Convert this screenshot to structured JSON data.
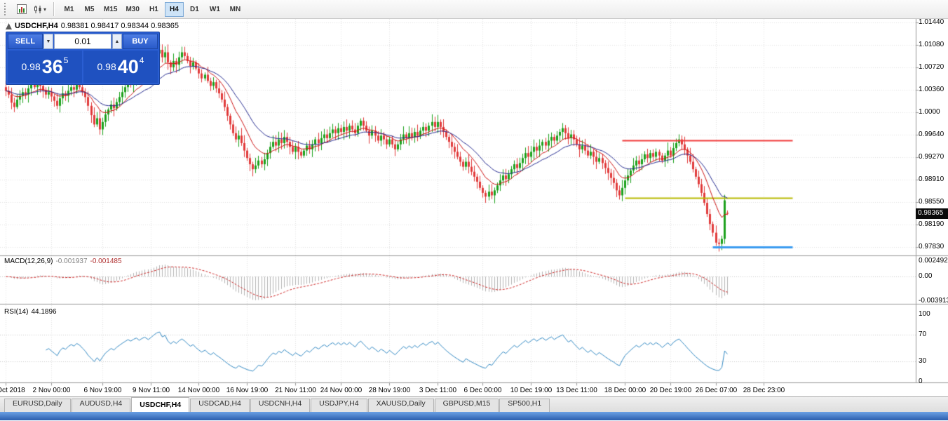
{
  "toolbar": {
    "timeframes": [
      "M1",
      "M5",
      "M15",
      "M30",
      "H1",
      "H4",
      "D1",
      "W1",
      "MN"
    ],
    "active_timeframe": "H4"
  },
  "chart": {
    "title": "USDCHF,H4",
    "ohlc_text": "0.98381 0.98417 0.98344 0.98365",
    "price_badge": "0.98365",
    "price_axis": [
      "1.01440",
      "1.01080",
      "1.00720",
      "1.00360",
      "1.0000",
      "0.99640",
      "0.99270",
      "0.98910",
      "0.98550",
      "0.98190",
      "0.97830"
    ],
    "price_axis_values": [
      1.0144,
      1.0108,
      1.0072,
      1.0036,
      1.0,
      0.9964,
      0.9927,
      0.9891,
      0.9855,
      0.9819,
      0.9783
    ]
  },
  "trade_panel": {
    "sell_label": "SELL",
    "buy_label": "BUY",
    "volume": "0.01",
    "sell_price_big": "0.98",
    "sell_price_pips": "36",
    "sell_price_sup": "5",
    "buy_price_big": "0.98",
    "buy_price_pips": "40",
    "buy_price_sup": "4"
  },
  "macd": {
    "label": "MACD(12,26,9)",
    "value1": "-0.001937",
    "value2": "-0.001485",
    "axis": [
      "0.002492",
      "0.00",
      "-0.003913"
    ],
    "axis_values": [
      0.002492,
      0,
      -0.003913
    ]
  },
  "rsi": {
    "label": "RSI(14)",
    "value": "44.1896",
    "axis": [
      "100",
      "70",
      "30",
      "0"
    ],
    "axis_values": [
      100,
      70,
      30,
      0
    ],
    "levels": [
      70,
      30
    ]
  },
  "dates": {
    "labels": [
      "30 Oct 2018",
      "2 Nov 00:00",
      "6 Nov 19:00",
      "9 Nov 11:00",
      "14 Nov 00:00",
      "16 Nov 19:00",
      "21 Nov 11:00",
      "24 Nov 00:00",
      "28 Nov 19:00",
      "3 Dec 11:00",
      "6 Dec 00:00",
      "10 Dec 19:00",
      "13 Dec 11:00",
      "18 Dec 00:00",
      "20 Dec 19:00",
      "26 Dec 07:00",
      "28 Dec 23:00"
    ],
    "candle_indices": [
      0,
      16,
      34,
      51,
      68,
      85,
      102,
      118,
      135,
      152,
      168,
      185,
      201,
      218,
      234,
      250,
      267
    ]
  },
  "tabs": {
    "items": [
      "EURUSD,Daily",
      "AUDUSD,H4",
      "USDCHF,H4",
      "USDCAD,H4",
      "USDCNH,H4",
      "USDJPY,H4",
      "XAUUSD,Daily",
      "GBPUSD,M15",
      "SP500,H1"
    ],
    "active": "USDCHF,H4"
  },
  "colors": {
    "candle_up": "#1ca11c",
    "candle_down": "#e13b3b",
    "ma_fast": "#cc1111",
    "ma_slow": "#242a8f",
    "macd_hist": "#b4b4b4",
    "macd_signal": "#cc2222",
    "rsi_line": "#2e86c1",
    "grid": "#e0e0e0",
    "level_dotted": "#c8c8c8",
    "separator": "#9a9a9a",
    "hline_red": "#f03b3b",
    "hline_yellow": "#b7ba00",
    "hline_blue": "#3a9bf0"
  },
  "chart_data": {
    "type": "candlestick",
    "symbol": "USDCHF",
    "timeframe": "H4",
    "price_min": 0.9783,
    "price_max": 1.0144,
    "indicators": [
      {
        "name": "MACD",
        "params": [
          12,
          26,
          9
        ],
        "current": [
          -0.001937,
          -0.001485
        ],
        "range": [
          -0.003913,
          0.002492
        ]
      },
      {
        "name": "RSI",
        "params": [
          14
        ],
        "current": 44.1896,
        "range": [
          0,
          100
        ]
      }
    ],
    "h_lines": [
      {
        "price": 0.9954,
        "color": "#f03b3b",
        "width": 2,
        "from_index": 217,
        "to_index": 277
      },
      {
        "price": 0.9862,
        "color": "#b7ba00",
        "width": 2,
        "from_index": 218,
        "to_index": 277
      },
      {
        "price": 0.9783,
        "color": "#3a9bf0",
        "width": 3,
        "from_index": 249,
        "to_index": 277
      }
    ],
    "last_candle": {
      "open": 0.98381,
      "high": 0.98417,
      "low": 0.98344,
      "close": 0.98365
    },
    "closes": [
      1.0034,
      1.0028,
      1.0015,
      1.0008,
      1.002,
      1.0026,
      1.0032,
      1.0028,
      1.0038,
      1.0044,
      1.004,
      1.0046,
      1.0042,
      1.0035,
      1.0028,
      1.0032,
      1.0025,
      1.0018,
      1.001,
      1.0022,
      1.003,
      1.0026,
      1.0034,
      1.004,
      1.0036,
      1.0044,
      1.004,
      1.0032,
      1.0024,
      1.001,
      0.9995,
      0.998,
      0.999,
      0.9972,
      0.9984,
      0.9996,
      1.0004,
      1.0012,
      1.0006,
      1.0016,
      1.0024,
      1.0032,
      1.004,
      1.0048,
      1.0044,
      1.0052,
      1.0058,
      1.0052,
      1.006,
      1.0066,
      1.006,
      1.007,
      1.0082,
      1.0094,
      1.01,
      1.0088,
      1.0096,
      1.008,
      1.0072,
      1.0082,
      1.0076,
      1.0088,
      1.0096,
      1.009,
      1.0082,
      1.0074,
      1.008,
      1.007,
      1.0062,
      1.0054,
      1.006,
      1.005,
      1.0042,
      1.0048,
      1.0038,
      1.003,
      1.002,
      1.0008,
      0.9994,
      0.998,
      0.9966,
      0.9956,
      0.9962,
      0.995,
      0.9938,
      0.9926,
      0.9916,
      0.9908,
      0.9914,
      0.9922,
      0.9916,
      0.9924,
      0.9934,
      0.9944,
      0.9952,
      0.9946,
      0.9956,
      0.995,
      0.996,
      0.9952,
      0.9944,
      0.9936,
      0.9944,
      0.9936,
      0.993,
      0.9938,
      0.9946,
      0.994,
      0.9948,
      0.9956,
      0.995,
      0.9958,
      0.9964,
      0.9958,
      0.9966,
      0.9972,
      0.9966,
      0.9974,
      0.9968,
      0.9976,
      0.997,
      0.9978,
      0.9972,
      0.9966,
      0.9978,
      0.9986,
      0.9978,
      0.997,
      0.9962,
      0.997,
      0.9962,
      0.9954,
      0.9962,
      0.9956,
      0.9948,
      0.9956,
      0.9948,
      0.994,
      0.9948,
      0.9956,
      0.9964,
      0.9958,
      0.9966,
      0.996,
      0.9968,
      0.9962,
      0.997,
      0.9976,
      0.997,
      0.9978,
      0.9984,
      0.9976,
      0.9984,
      0.9976,
      0.9968,
      0.996,
      0.9952,
      0.9944,
      0.9936,
      0.9928,
      0.992,
      0.9912,
      0.992,
      0.9912,
      0.9904,
      0.9896,
      0.9888,
      0.9878,
      0.987,
      0.9864,
      0.9872,
      0.9866,
      0.9874,
      0.9882,
      0.989,
      0.9898,
      0.9892,
      0.99,
      0.9908,
      0.9916,
      0.991,
      0.9918,
      0.9926,
      0.9934,
      0.9928,
      0.9936,
      0.9944,
      0.9938,
      0.9946,
      0.9952,
      0.9946,
      0.9954,
      0.996,
      0.9954,
      0.9962,
      0.9968,
      0.9974,
      0.9966,
      0.9958,
      0.9964,
      0.9956,
      0.9948,
      0.994,
      0.9946,
      0.9938,
      0.993,
      0.9936,
      0.9928,
      0.992,
      0.9926,
      0.9918,
      0.991,
      0.9902,
      0.9894,
      0.9886,
      0.9874,
      0.9866,
      0.9878,
      0.989,
      0.9898,
      0.9906,
      0.9914,
      0.9922,
      0.9916,
      0.9924,
      0.9932,
      0.9926,
      0.9934,
      0.9928,
      0.9936,
      0.993,
      0.9922,
      0.993,
      0.9938,
      0.993,
      0.9942,
      0.995,
      0.9956,
      0.9948,
      0.994,
      0.993,
      0.992,
      0.9908,
      0.9896,
      0.9884,
      0.987,
      0.9854,
      0.9836,
      0.982,
      0.9806,
      0.979,
      0.9788,
      0.9796,
      0.9858,
      0.98365
    ]
  }
}
